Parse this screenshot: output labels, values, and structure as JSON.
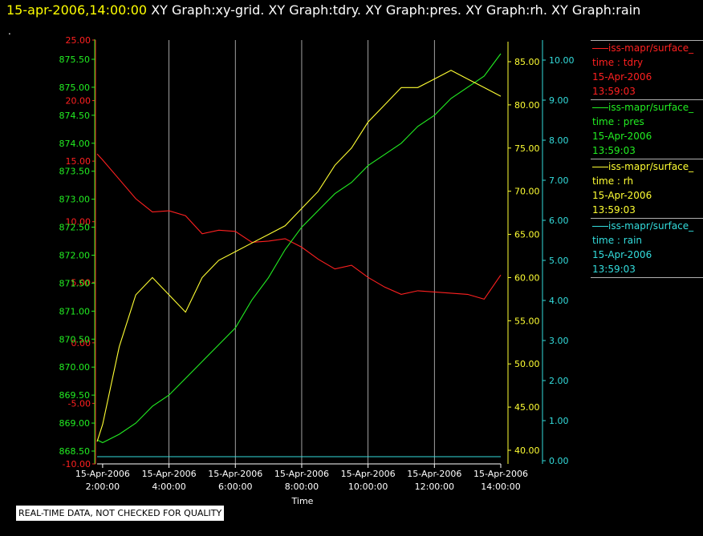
{
  "header": {
    "timestamp": "15-apr-2006,14:00:00",
    "graphs": "XY Graph:xy-grid.  XY Graph:tdry.  XY Graph:pres.  XY Graph:rh.  XY Graph:rain"
  },
  "top_mark": ".",
  "disclaimer": "REAL-TIME DATA, NOT CHECKED FOR QUALITY",
  "colors": {
    "tdry": "#ff2020",
    "pres": "#22ee22",
    "rh": "#ffff33",
    "rain": "#33dddd",
    "grid": "#c8c8c8"
  },
  "legend": [
    {
      "name": "iss-mapr/surface_",
      "var": "time : tdry",
      "date": "15-Apr-2006",
      "time": "13:59:03",
      "color": "#ff2020"
    },
    {
      "name": "iss-mapr/surface_",
      "var": "time : pres",
      "date": "15-Apr-2006",
      "time": "13:59:03",
      "color": "#22ee22"
    },
    {
      "name": "iss-mapr/surface_",
      "var": "time : rh",
      "date": "15-Apr-2006",
      "time": "13:59:03",
      "color": "#ffff33"
    },
    {
      "name": "iss-mapr/surface_",
      "var": "time : rain",
      "date": "15-Apr-2006",
      "time": "13:59:03",
      "color": "#33dddd"
    }
  ],
  "chart_data": {
    "type": "line",
    "xlabel": "Time",
    "xlim": [
      "15-Apr-2006 1:50:00",
      "15-Apr-2006 14:00:00"
    ],
    "x_ticks": [
      {
        "date": "15-Apr-2006",
        "time": "2:00:00"
      },
      {
        "date": "15-Apr-2006",
        "time": "4:00:00"
      },
      {
        "date": "15-Apr-2006",
        "time": "6:00:00"
      },
      {
        "date": "15-Apr-2006",
        "time": "8:00:00"
      },
      {
        "date": "15-Apr-2006",
        "time": "10:00:00"
      },
      {
        "date": "15-Apr-2006",
        "time": "12:00:00"
      },
      {
        "date": "15-Apr-2006",
        "time": "14:00:00"
      }
    ],
    "x_hours": [
      1.833,
      2.0,
      2.5,
      3.0,
      3.5,
      4.0,
      4.5,
      5.0,
      5.5,
      6.0,
      6.5,
      7.0,
      7.5,
      8.0,
      8.5,
      9.0,
      9.5,
      10.0,
      10.5,
      11.0,
      11.5,
      12.0,
      12.5,
      13.0,
      13.5,
      14.0
    ],
    "axes": [
      {
        "id": "tdry",
        "label_values": [
          "25.00",
          "20.00",
          "15.00",
          "10.00",
          "5.00",
          "0.00",
          "-5.00",
          "-10.00"
        ],
        "ylim": [
          -10,
          25
        ]
      },
      {
        "id": "pres",
        "label_values": [
          "875.50",
          "875.00",
          "874.50",
          "874.00",
          "873.50",
          "873.00",
          "872.50",
          "872.00",
          "871.50",
          "871.00",
          "870.50",
          "870.00",
          "869.50",
          "869.00",
          "868.50"
        ],
        "ylim": [
          868.3,
          875.8
        ]
      },
      {
        "id": "rh",
        "label_values": [
          "85.00",
          "80.00",
          "75.00",
          "70.00",
          "65.00",
          "60.00",
          "55.00",
          "50.00",
          "45.00",
          "40.00"
        ],
        "ylim": [
          38.5,
          87
        ]
      },
      {
        "id": "rain",
        "label_values": [
          "10.00",
          "9.00",
          "8.00",
          "7.00",
          "6.00",
          "5.00",
          "4.00",
          "3.00",
          "2.00",
          "1.00",
          "0.00"
        ],
        "ylim": [
          0,
          10.3
        ]
      }
    ],
    "series": [
      {
        "id": "tdry",
        "values": [
          15.6,
          15.1,
          13.5,
          11.9,
          10.8,
          10.9,
          10.5,
          9.0,
          9.3,
          9.2,
          8.3,
          8.4,
          8.6,
          7.9,
          6.9,
          6.1,
          6.4,
          5.4,
          4.6,
          4.0,
          4.3,
          4.2,
          4.1,
          4.0,
          3.6,
          5.6
        ]
      },
      {
        "id": "pres",
        "values": [
          868.7,
          868.65,
          868.8,
          869.0,
          869.3,
          869.5,
          869.8,
          870.1,
          870.4,
          870.7,
          871.2,
          871.6,
          872.1,
          872.5,
          872.8,
          873.1,
          873.3,
          873.6,
          873.8,
          874.0,
          874.3,
          874.5,
          874.8,
          875.0,
          875.2,
          875.6
        ]
      },
      {
        "id": "rh",
        "values": [
          41,
          43,
          52,
          58,
          60,
          58,
          56,
          60,
          62,
          63,
          64,
          65,
          66,
          68,
          70,
          73,
          75,
          78,
          80,
          82,
          82,
          83,
          84,
          83,
          82,
          81
        ]
      },
      {
        "id": "rain",
        "values": [
          0.1,
          0.1,
          0.1,
          0.1,
          0.1,
          0.1,
          0.1,
          0.1,
          0.1,
          0.1,
          0.1,
          0.1,
          0.1,
          0.1,
          0.1,
          0.1,
          0.1,
          0.1,
          0.1,
          0.1,
          0.1,
          0.1,
          0.1,
          0.1,
          0.1,
          0.1
        ]
      }
    ]
  }
}
